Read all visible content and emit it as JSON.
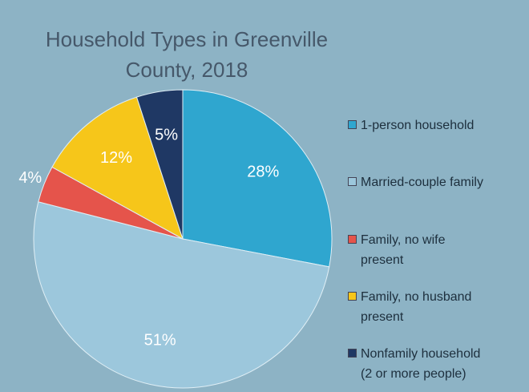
{
  "chart_data": {
    "type": "pie",
    "title": "Household Types in Greenville County, 2018",
    "categories": [
      "1-person household",
      "Married-couple family",
      "Family, no wife present",
      "Family, no husband present",
      "Nonfamily household (2 or more people)"
    ],
    "values": [
      28,
      51,
      4,
      12,
      5
    ],
    "value_labels": [
      "28%",
      "51%",
      "4%",
      "12%",
      "5%"
    ],
    "colors": [
      "#2fa6cf",
      "#9cc7dc",
      "#e5544b",
      "#f6c61a",
      "#1f3864"
    ],
    "legend": "right"
  }
}
